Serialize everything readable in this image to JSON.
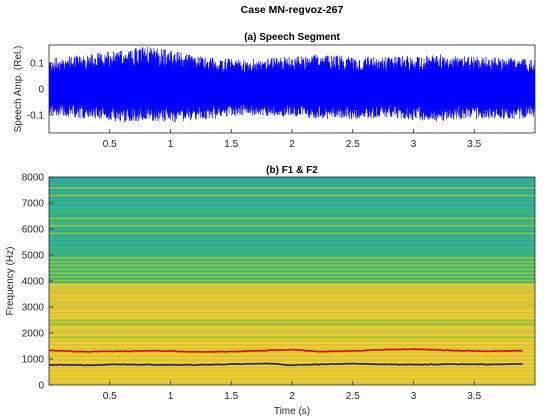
{
  "figure_title": "Case MN-regvoz-267",
  "chart_data": [
    {
      "type": "line",
      "title": "(a) Speech Segment",
      "xlabel": "",
      "ylabel": "Speech Amp. (Rel.)",
      "xlim": [
        0,
        4.0
      ],
      "ylim": [
        -0.17,
        0.17
      ],
      "xticks": [
        0.5,
        1,
        1.5,
        2,
        2.5,
        3,
        3.5
      ],
      "xtick_labels": [
        "0.5",
        "1",
        "1.5",
        "2",
        "2.5",
        "3",
        "3.5"
      ],
      "yticks": [
        -0.1,
        0,
        0.1
      ],
      "ytick_labels": [
        "-0.1",
        "0",
        "0.1"
      ],
      "series": [
        {
          "color": "#0000ff",
          "envelope_t": [
            0.0,
            0.2,
            0.4,
            0.6,
            0.8,
            1.0,
            1.2,
            1.4,
            1.6,
            1.8,
            2.0,
            2.2,
            2.4,
            2.6,
            2.8,
            3.0,
            3.2,
            3.4,
            3.6,
            3.8,
            3.95
          ],
          "envelope_upper": [
            0.12,
            0.13,
            0.14,
            0.15,
            0.165,
            0.15,
            0.13,
            0.12,
            0.115,
            0.12,
            0.13,
            0.135,
            0.13,
            0.125,
            0.125,
            0.13,
            0.135,
            0.13,
            0.125,
            0.12,
            0.115
          ],
          "envelope_lower": [
            -0.1,
            -0.11,
            -0.12,
            -0.13,
            -0.125,
            -0.13,
            -0.12,
            -0.115,
            -0.1,
            -0.105,
            -0.11,
            -0.115,
            -0.12,
            -0.115,
            -0.11,
            -0.12,
            -0.125,
            -0.12,
            -0.115,
            -0.12,
            -0.11
          ]
        }
      ]
    },
    {
      "type": "heatmap",
      "title": "(b) F1 & F2",
      "xlabel": "Time (s)",
      "ylabel": "Frequency (Hz)",
      "xlim": [
        0,
        4.0
      ],
      "ylim": [
        0,
        8000
      ],
      "xticks": [
        0.5,
        1,
        1.5,
        2,
        2.5,
        3,
        3.5
      ],
      "xtick_labels": [
        "0.5",
        "1",
        "1.5",
        "2",
        "2.5",
        "3",
        "3.5"
      ],
      "yticks": [
        0,
        1000,
        2000,
        3000,
        4000,
        5000,
        6000,
        7000,
        8000
      ],
      "ytick_labels": [
        "0",
        "1000",
        "2000",
        "3000",
        "4000",
        "5000",
        "6000",
        "7000",
        "8000"
      ],
      "colormap": [
        "#2aa5a0",
        "#37b385",
        "#8cc43c",
        "#d6c33a",
        "#f2cf2a"
      ],
      "energy_bands": [
        {
          "from_hz": 0,
          "to_hz": 1800,
          "level": 0.85
        },
        {
          "from_hz": 1800,
          "to_hz": 2500,
          "level": 0.7
        },
        {
          "from_hz": 2500,
          "to_hz": 3900,
          "level": 0.82
        },
        {
          "from_hz": 3900,
          "to_hz": 5000,
          "level": 0.35
        },
        {
          "from_hz": 5000,
          "to_hz": 8000,
          "level": 0.2
        }
      ],
      "formant_tracks": [
        {
          "label": "F1",
          "color": "#1a1a8c",
          "t": [
            0.0,
            0.3,
            0.6,
            0.9,
            1.2,
            1.5,
            1.8,
            2.0,
            2.2,
            2.5,
            2.7,
            3.0,
            3.3,
            3.6,
            3.9
          ],
          "hz": [
            780,
            760,
            790,
            780,
            770,
            800,
            830,
            760,
            790,
            820,
            800,
            780,
            800,
            790,
            810
          ]
        },
        {
          "label": "F2",
          "color": "#e00000",
          "t": [
            0.0,
            0.3,
            0.6,
            0.9,
            1.2,
            1.5,
            1.8,
            2.0,
            2.2,
            2.5,
            2.7,
            3.0,
            3.3,
            3.6,
            3.9
          ],
          "hz": [
            1330,
            1280,
            1300,
            1320,
            1270,
            1290,
            1330,
            1360,
            1290,
            1310,
            1350,
            1380,
            1330,
            1300,
            1320
          ]
        }
      ]
    }
  ]
}
